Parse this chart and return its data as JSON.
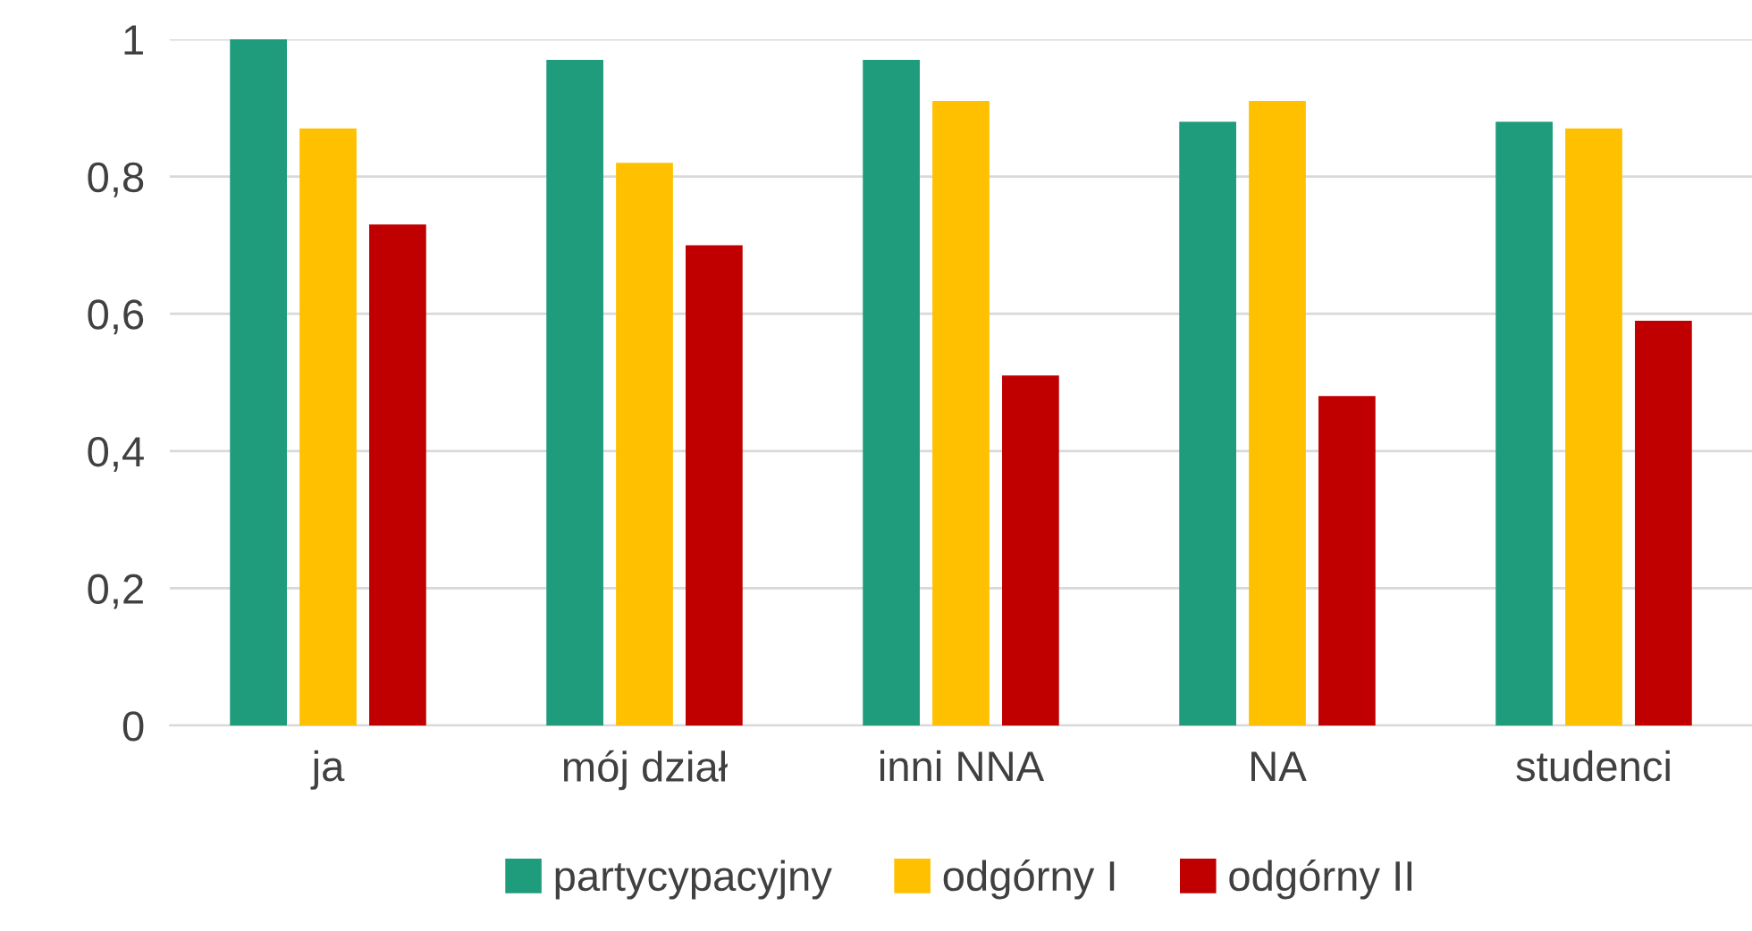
{
  "chart_data": {
    "type": "bar",
    "categories": [
      "ja",
      "mój dział",
      "inni NNA",
      "NA",
      "studenci"
    ],
    "series": [
      {
        "name": "partycypacyjny",
        "color": "#1e9c7b",
        "values": [
          1.0,
          0.97,
          0.97,
          0.88,
          0.88
        ]
      },
      {
        "name": "odgórny I",
        "color": "#ffc000",
        "values": [
          0.87,
          0.82,
          0.91,
          0.91,
          0.87
        ]
      },
      {
        "name": "odgórny II",
        "color": "#c00000",
        "values": [
          0.73,
          0.7,
          0.51,
          0.48,
          0.59
        ]
      }
    ],
    "ylim": [
      0,
      1
    ],
    "yticks": [
      {
        "value": 0,
        "label": "0"
      },
      {
        "value": 0.2,
        "label": "0,2"
      },
      {
        "value": 0.4,
        "label": "0,4"
      },
      {
        "value": 0.6,
        "label": "0,6"
      },
      {
        "value": 0.8,
        "label": "0,8"
      },
      {
        "value": 1,
        "label": "1"
      }
    ],
    "grid": "y",
    "legend": "bottom"
  }
}
